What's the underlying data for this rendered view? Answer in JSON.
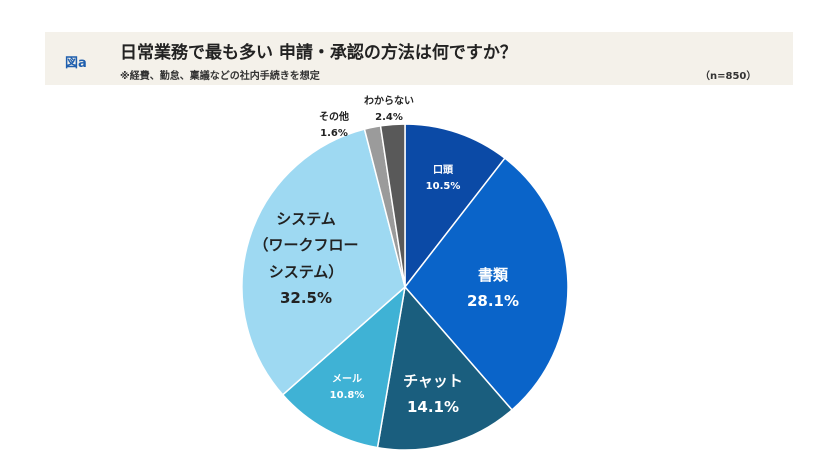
{
  "header": {
    "figure_label": "図a",
    "title": "日常業務で最も多い 申請・承認の方法は何ですか？",
    "subtitle": "※経費、勤怠、稟議などの社内手続きを想定",
    "sample": "（n=850）"
  },
  "chart_data": {
    "type": "pie",
    "start": "top",
    "direction": "clockwise",
    "slices": [
      {
        "label": "口頭",
        "value": 10.5,
        "display": "10.5%",
        "color": "#0b4aa6"
      },
      {
        "label": "書類",
        "value": 28.1,
        "display": "28.1%",
        "color": "#0a64c9"
      },
      {
        "label": "チャット",
        "value": 14.1,
        "display": "14.1%",
        "color": "#1a5e7e"
      },
      {
        "label": "メール",
        "value": 10.8,
        "display": "10.8%",
        "color": "#3fb2d5"
      },
      {
        "label": "システム（ワークフローシステム）",
        "label_lines": [
          "システム",
          "（ワークフロー",
          "システム）"
        ],
        "value": 32.5,
        "display": "32.5%",
        "color": "#9ed9f2"
      },
      {
        "label": "その他",
        "value": 1.6,
        "display": "1.6%",
        "color": "#9b9b9b"
      },
      {
        "label": "わからない",
        "value": 2.4,
        "display": "2.4%",
        "color": "#595959"
      }
    ]
  }
}
